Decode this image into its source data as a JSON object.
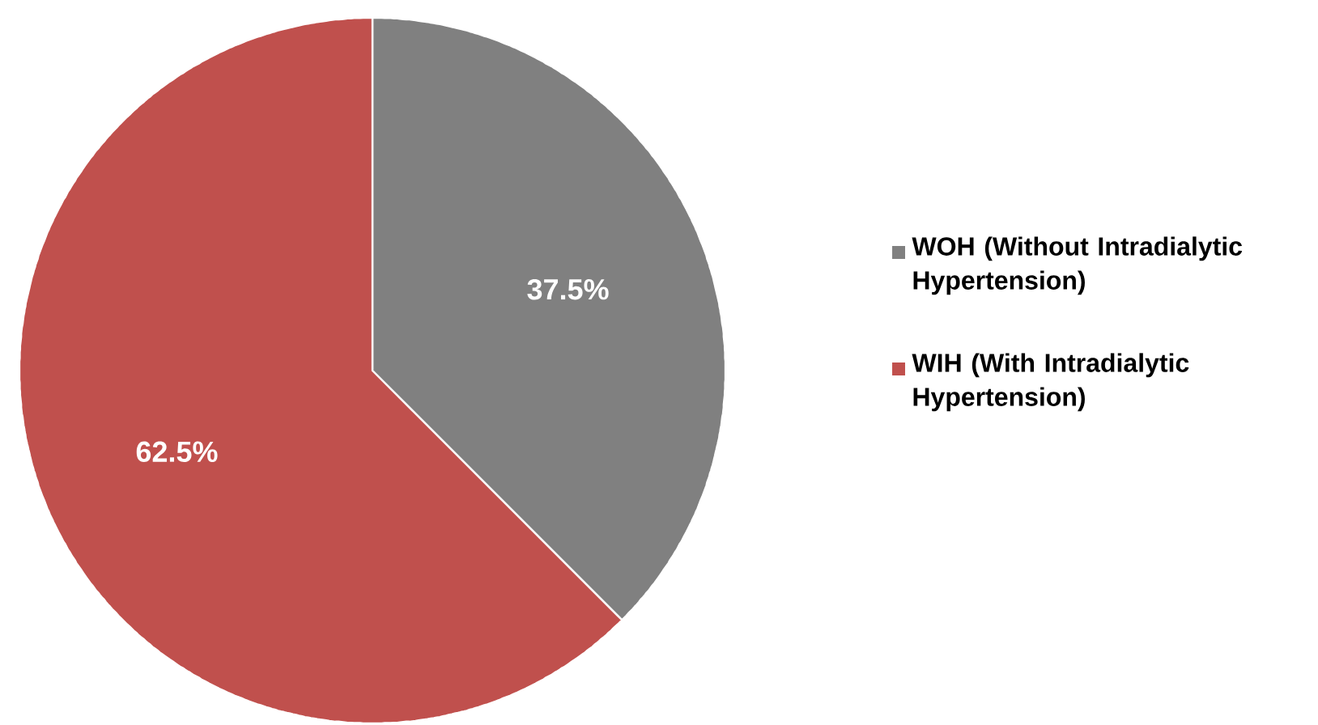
{
  "chart_data": {
    "type": "pie",
    "categories": [
      "WOH (Without Intradialytic Hypertension)",
      "WIH (With Intradialytic Hypertension)"
    ],
    "values": [
      37.5,
      62.5
    ],
    "colors": [
      "#808080",
      "#c0504d"
    ],
    "value_labels": [
      "37.5%",
      "62.5%"
    ],
    "legend": "right"
  }
}
